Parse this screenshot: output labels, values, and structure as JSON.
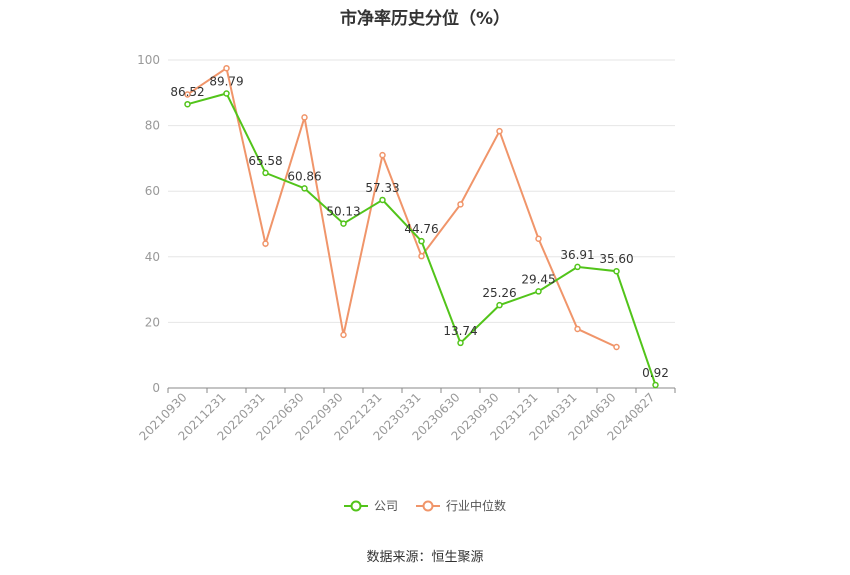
{
  "chart_data": {
    "type": "line",
    "title": "市净率历史分位（%）",
    "xlabel": "",
    "ylabel": "",
    "ylim": [
      0,
      100
    ],
    "yticks": [
      0,
      20,
      40,
      60,
      80,
      100
    ],
    "categories": [
      "20210930",
      "20211231",
      "20220331",
      "20220630",
      "20220930",
      "20221231",
      "20230331",
      "20230630",
      "20230930",
      "20231231",
      "20240331",
      "20240630",
      "20240827"
    ],
    "series": [
      {
        "name": "公司",
        "color": "#52c41a",
        "values": [
          86.52,
          89.79,
          65.58,
          60.86,
          50.13,
          57.33,
          44.76,
          13.74,
          25.26,
          29.45,
          36.91,
          35.6,
          0.92
        ],
        "labels": [
          "86.52",
          "89.79",
          "65.58",
          "60.86",
          "50.13",
          "57.33",
          "44.76",
          "13.74",
          "25.26",
          "29.45",
          "36.91",
          "35.60",
          "0.92"
        ]
      },
      {
        "name": "行业中位数",
        "color": "#f0956a",
        "values": [
          89.5,
          97.5,
          44.0,
          82.5,
          16.2,
          71.0,
          40.2,
          56.0,
          78.3,
          45.5,
          18.0,
          12.5,
          null
        ]
      }
    ],
    "grid": true,
    "legend_position": "bottom-center"
  },
  "source_text": "数据来源：恒生聚源"
}
